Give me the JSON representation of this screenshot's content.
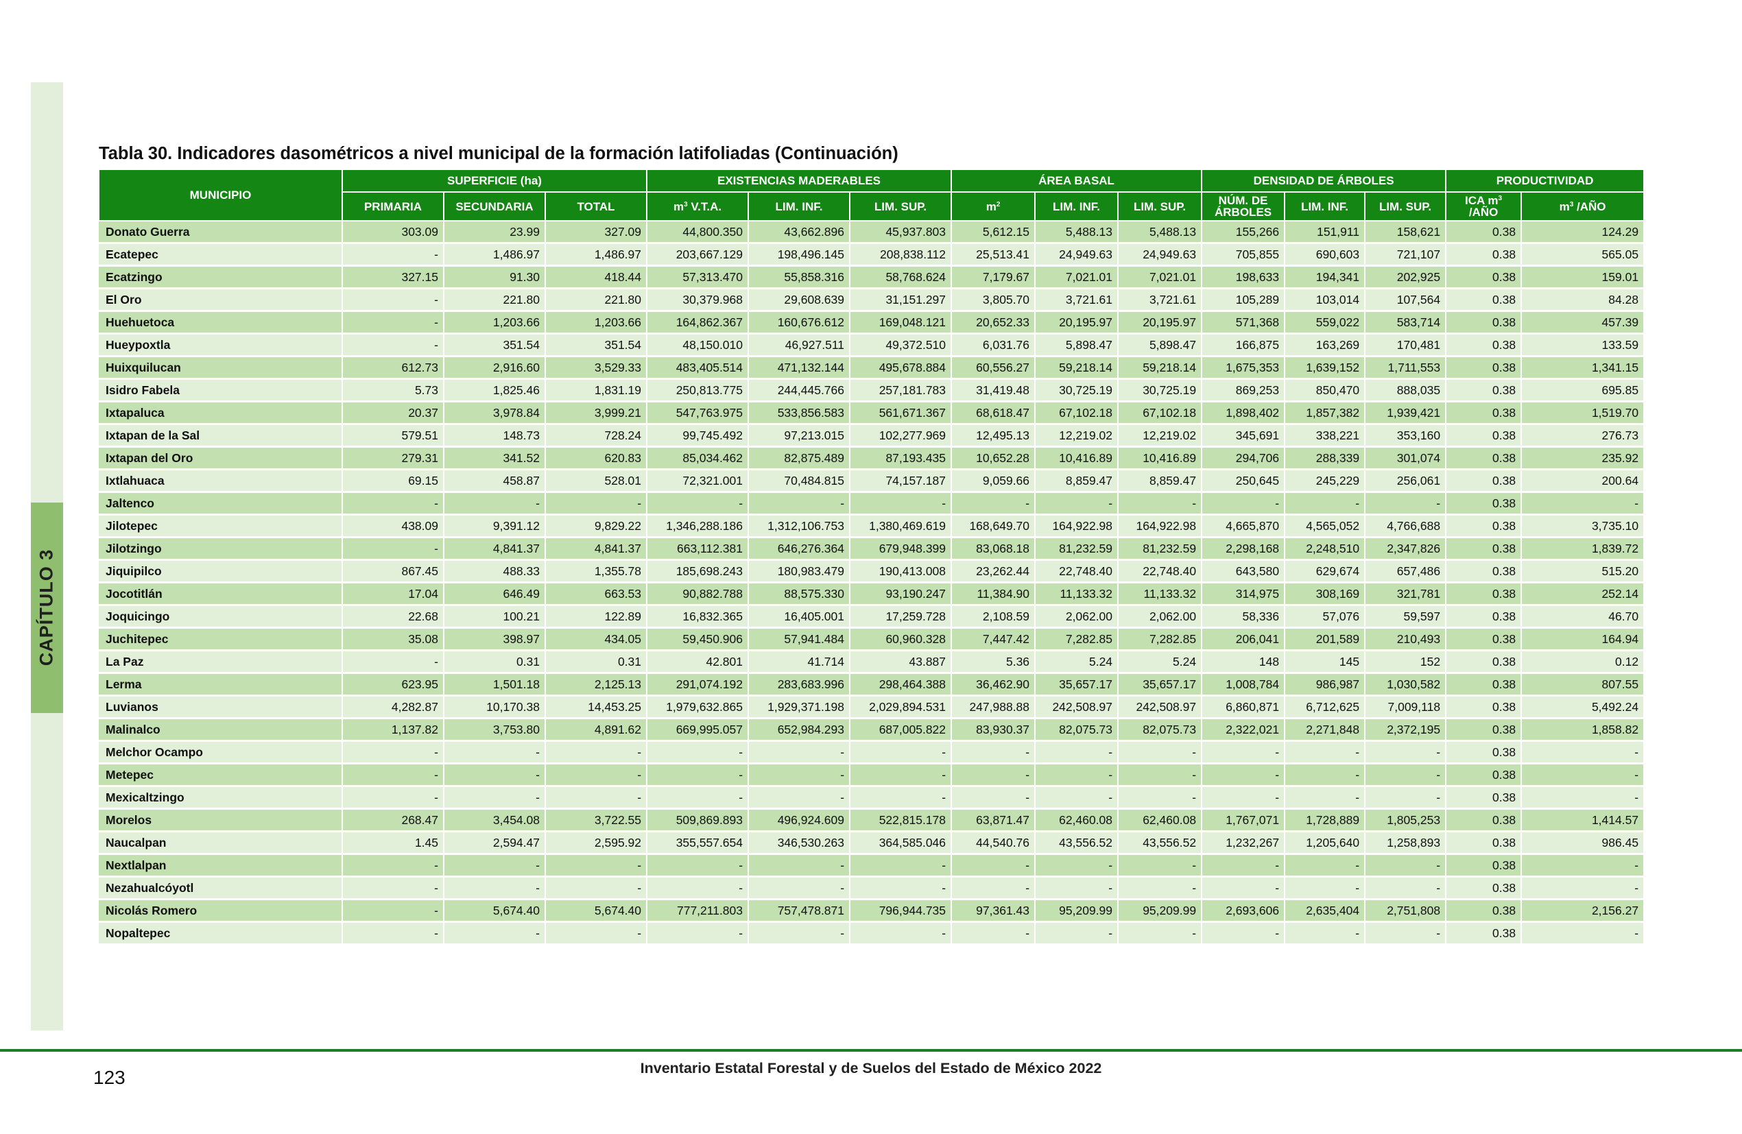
{
  "side_tab": {
    "label": "CAPÍTULO 3"
  },
  "title": "Tabla 30. Indicadores dasométricos a nivel municipal de la formación latifoliadas (Continuación)",
  "headers": {
    "municipio": "MUNICIPIO",
    "groups": [
      "SUPERFICIE (ha)",
      "EXISTENCIAS MADERABLES",
      "ÁREA BASAL",
      "DENSIDAD DE ÁRBOLES",
      "PRODUCTIVIDAD"
    ],
    "sub": {
      "primaria": "PRIMARIA",
      "secundaria": "SECUNDARIA",
      "total": "TOTAL",
      "m3_base": "m",
      "m3_exp": "3",
      "vta": " V.T.A.",
      "lim_inf": "LIM. INF.",
      "lim_sup": "LIM. SUP.",
      "m2_base": "m",
      "m2_exp": "2",
      "num_line1": "NÚM. DE",
      "num_line2": "ÁRBOLES",
      "ica_line1": "ICA m",
      "ica_exp": "3",
      "ica_line2": "/AÑO",
      "m3_year": " /AÑO"
    }
  },
  "rows": [
    [
      "Donato Guerra",
      "303.09",
      "23.99",
      "327.09",
      "44,800.350",
      "43,662.896",
      "45,937.803",
      "5,612.15",
      "5,488.13",
      "5,488.13",
      "155,266",
      "151,911",
      "158,621",
      "0.38",
      "124.29"
    ],
    [
      "Ecatepec",
      "-",
      "1,486.97",
      "1,486.97",
      "203,667.129",
      "198,496.145",
      "208,838.112",
      "25,513.41",
      "24,949.63",
      "24,949.63",
      "705,855",
      "690,603",
      "721,107",
      "0.38",
      "565.05"
    ],
    [
      "Ecatzingo",
      "327.15",
      "91.30",
      "418.44",
      "57,313.470",
      "55,858.316",
      "58,768.624",
      "7,179.67",
      "7,021.01",
      "7,021.01",
      "198,633",
      "194,341",
      "202,925",
      "0.38",
      "159.01"
    ],
    [
      "El Oro",
      "-",
      "221.80",
      "221.80",
      "30,379.968",
      "29,608.639",
      "31,151.297",
      "3,805.70",
      "3,721.61",
      "3,721.61",
      "105,289",
      "103,014",
      "107,564",
      "0.38",
      "84.28"
    ],
    [
      "Huehuetoca",
      "-",
      "1,203.66",
      "1,203.66",
      "164,862.367",
      "160,676.612",
      "169,048.121",
      "20,652.33",
      "20,195.97",
      "20,195.97",
      "571,368",
      "559,022",
      "583,714",
      "0.38",
      "457.39"
    ],
    [
      "Hueypoxtla",
      "-",
      "351.54",
      "351.54",
      "48,150.010",
      "46,927.511",
      "49,372.510",
      "6,031.76",
      "5,898.47",
      "5,898.47",
      "166,875",
      "163,269",
      "170,481",
      "0.38",
      "133.59"
    ],
    [
      "Huixquilucan",
      "612.73",
      "2,916.60",
      "3,529.33",
      "483,405.514",
      "471,132.144",
      "495,678.884",
      "60,556.27",
      "59,218.14",
      "59,218.14",
      "1,675,353",
      "1,639,152",
      "1,711,553",
      "0.38",
      "1,341.15"
    ],
    [
      "Isidro Fabela",
      "5.73",
      "1,825.46",
      "1,831.19",
      "250,813.775",
      "244,445.766",
      "257,181.783",
      "31,419.48",
      "30,725.19",
      "30,725.19",
      "869,253",
      "850,470",
      "888,035",
      "0.38",
      "695.85"
    ],
    [
      "Ixtapaluca",
      "20.37",
      "3,978.84",
      "3,999.21",
      "547,763.975",
      "533,856.583",
      "561,671.367",
      "68,618.47",
      "67,102.18",
      "67,102.18",
      "1,898,402",
      "1,857,382",
      "1,939,421",
      "0.38",
      "1,519.70"
    ],
    [
      "Ixtapan de la Sal",
      "579.51",
      "148.73",
      "728.24",
      "99,745.492",
      "97,213.015",
      "102,277.969",
      "12,495.13",
      "12,219.02",
      "12,219.02",
      "345,691",
      "338,221",
      "353,160",
      "0.38",
      "276.73"
    ],
    [
      "Ixtapan del Oro",
      "279.31",
      "341.52",
      "620.83",
      "85,034.462",
      "82,875.489",
      "87,193.435",
      "10,652.28",
      "10,416.89",
      "10,416.89",
      "294,706",
      "288,339",
      "301,074",
      "0.38",
      "235.92"
    ],
    [
      "Ixtlahuaca",
      "69.15",
      "458.87",
      "528.01",
      "72,321.001",
      "70,484.815",
      "74,157.187",
      "9,059.66",
      "8,859.47",
      "8,859.47",
      "250,645",
      "245,229",
      "256,061",
      "0.38",
      "200.64"
    ],
    [
      "Jaltenco",
      "-",
      "-",
      "-",
      "-",
      "-",
      "-",
      "-",
      "-",
      "-",
      "-",
      "-",
      "-",
      "0.38",
      "-"
    ],
    [
      "Jilotepec",
      "438.09",
      "9,391.12",
      "9,829.22",
      "1,346,288.186",
      "1,312,106.753",
      "1,380,469.619",
      "168,649.70",
      "164,922.98",
      "164,922.98",
      "4,665,870",
      "4,565,052",
      "4,766,688",
      "0.38",
      "3,735.10"
    ],
    [
      "Jilotzingo",
      "-",
      "4,841.37",
      "4,841.37",
      "663,112.381",
      "646,276.364",
      "679,948.399",
      "83,068.18",
      "81,232.59",
      "81,232.59",
      "2,298,168",
      "2,248,510",
      "2,347,826",
      "0.38",
      "1,839.72"
    ],
    [
      "Jiquipilco",
      "867.45",
      "488.33",
      "1,355.78",
      "185,698.243",
      "180,983.479",
      "190,413.008",
      "23,262.44",
      "22,748.40",
      "22,748.40",
      "643,580",
      "629,674",
      "657,486",
      "0.38",
      "515.20"
    ],
    [
      "Jocotitlán",
      "17.04",
      "646.49",
      "663.53",
      "90,882.788",
      "88,575.330",
      "93,190.247",
      "11,384.90",
      "11,133.32",
      "11,133.32",
      "314,975",
      "308,169",
      "321,781",
      "0.38",
      "252.14"
    ],
    [
      "Joquicingo",
      "22.68",
      "100.21",
      "122.89",
      "16,832.365",
      "16,405.001",
      "17,259.728",
      "2,108.59",
      "2,062.00",
      "2,062.00",
      "58,336",
      "57,076",
      "59,597",
      "0.38",
      "46.70"
    ],
    [
      "Juchitepec",
      "35.08",
      "398.97",
      "434.05",
      "59,450.906",
      "57,941.484",
      "60,960.328",
      "7,447.42",
      "7,282.85",
      "7,282.85",
      "206,041",
      "201,589",
      "210,493",
      "0.38",
      "164.94"
    ],
    [
      "La Paz",
      "-",
      "0.31",
      "0.31",
      "42.801",
      "41.714",
      "43.887",
      "5.36",
      "5.24",
      "5.24",
      "148",
      "145",
      "152",
      "0.38",
      "0.12"
    ],
    [
      "Lerma",
      "623.95",
      "1,501.18",
      "2,125.13",
      "291,074.192",
      "283,683.996",
      "298,464.388",
      "36,462.90",
      "35,657.17",
      "35,657.17",
      "1,008,784",
      "986,987",
      "1,030,582",
      "0.38",
      "807.55"
    ],
    [
      "Luvianos",
      "4,282.87",
      "10,170.38",
      "14,453.25",
      "1,979,632.865",
      "1,929,371.198",
      "2,029,894.531",
      "247,988.88",
      "242,508.97",
      "242,508.97",
      "6,860,871",
      "6,712,625",
      "7,009,118",
      "0.38",
      "5,492.24"
    ],
    [
      "Malinalco",
      "1,137.82",
      "3,753.80",
      "4,891.62",
      "669,995.057",
      "652,984.293",
      "687,005.822",
      "83,930.37",
      "82,075.73",
      "82,075.73",
      "2,322,021",
      "2,271,848",
      "2,372,195",
      "0.38",
      "1,858.82"
    ],
    [
      "Melchor Ocampo",
      "-",
      "-",
      "-",
      "-",
      "-",
      "-",
      "-",
      "-",
      "-",
      "-",
      "-",
      "-",
      "0.38",
      "-"
    ],
    [
      "Metepec",
      "-",
      "-",
      "-",
      "-",
      "-",
      "-",
      "-",
      "-",
      "-",
      "-",
      "-",
      "-",
      "0.38",
      "-"
    ],
    [
      "Mexicaltzingo",
      "-",
      "-",
      "-",
      "-",
      "-",
      "-",
      "-",
      "-",
      "-",
      "-",
      "-",
      "-",
      "0.38",
      "-"
    ],
    [
      "Morelos",
      "268.47",
      "3,454.08",
      "3,722.55",
      "509,869.893",
      "496,924.609",
      "522,815.178",
      "63,871.47",
      "62,460.08",
      "62,460.08",
      "1,767,071",
      "1,728,889",
      "1,805,253",
      "0.38",
      "1,414.57"
    ],
    [
      "Naucalpan",
      "1.45",
      "2,594.47",
      "2,595.92",
      "355,557.654",
      "346,530.263",
      "364,585.046",
      "44,540.76",
      "43,556.52",
      "43,556.52",
      "1,232,267",
      "1,205,640",
      "1,258,893",
      "0.38",
      "986.45"
    ],
    [
      "Nextlalpan",
      "-",
      "-",
      "-",
      "-",
      "-",
      "-",
      "-",
      "-",
      "-",
      "-",
      "-",
      "-",
      "0.38",
      "-"
    ],
    [
      "Nezahualcóyotl",
      "-",
      "-",
      "-",
      "-",
      "-",
      "-",
      "-",
      "-",
      "-",
      "-",
      "-",
      "-",
      "0.38",
      "-"
    ],
    [
      "Nicolás Romero",
      "-",
      "5,674.40",
      "5,674.40",
      "777,211.803",
      "757,478.871",
      "796,944.735",
      "97,361.43",
      "95,209.99",
      "95,209.99",
      "2,693,606",
      "2,635,404",
      "2,751,808",
      "0.38",
      "2,156.27"
    ],
    [
      "Nopaltepec",
      "-",
      "-",
      "-",
      "-",
      "-",
      "-",
      "-",
      "-",
      "-",
      "-",
      "-",
      "-",
      "0.38",
      "-"
    ]
  ],
  "footer": {
    "page_number": "123",
    "publication": "Inventario Estatal Forestal y de Suelos del Estado de México 2022"
  },
  "colors": {
    "header_green": "#138613",
    "row_dark": "#c3e0b1",
    "row_light": "#e2efd9",
    "side_tab": "#8fbf6e",
    "side_strip": "#e3efda",
    "footer_rule": "#1d7d28"
  }
}
